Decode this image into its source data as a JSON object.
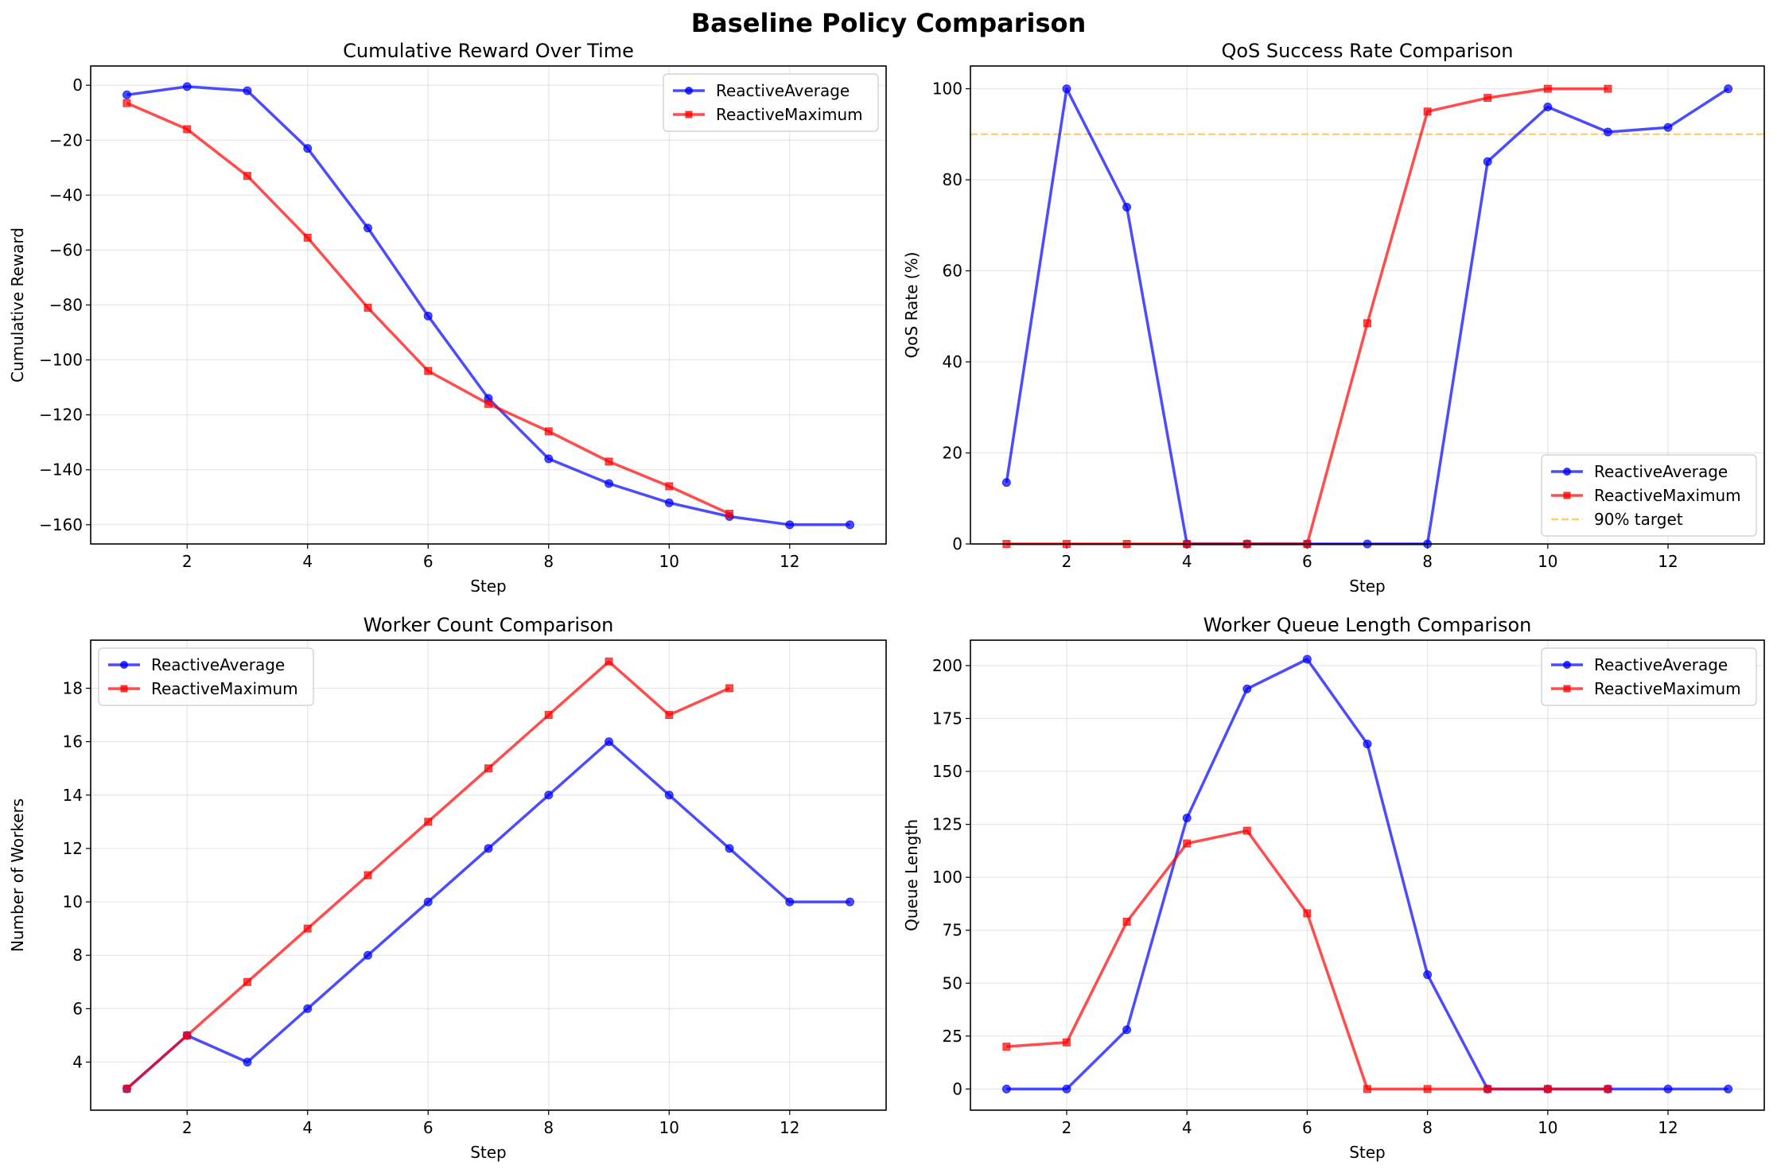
{
  "figure_title": "Baseline Policy Comparison",
  "colors": {
    "average": "#0000ff",
    "maximum": "#ff0000",
    "target": "#ffa500"
  },
  "chart_data": [
    {
      "type": "line",
      "title": "Cumulative Reward Over Time",
      "xlabel": "Step",
      "ylabel": "Cumulative Reward",
      "xlim": [
        0.4,
        13.6
      ],
      "ylim": [
        -167,
        7
      ],
      "xticks": [
        2,
        4,
        6,
        8,
        10,
        12
      ],
      "yticks": [
        0,
        -20,
        -40,
        -60,
        -80,
        -100,
        -120,
        -140,
        -160
      ],
      "grid": true,
      "legend": "upper right",
      "series": [
        {
          "name": "ReactiveAverage",
          "marker": "circle",
          "x": [
            1,
            2,
            3,
            4,
            5,
            6,
            7,
            8,
            9,
            10,
            11,
            12,
            13
          ],
          "y": [
            -3.5,
            -0.5,
            -2,
            -23,
            -52,
            -84,
            -114,
            -136,
            -145,
            -152,
            -157,
            -160,
            -160
          ]
        },
        {
          "name": "ReactiveMaximum",
          "marker": "square",
          "x": [
            1,
            2,
            3,
            4,
            5,
            6,
            7,
            8,
            9,
            10,
            11
          ],
          "y": [
            -6.5,
            -16,
            -33,
            -55.5,
            -81,
            -104,
            -116,
            -126,
            -137,
            -146,
            -156
          ]
        }
      ]
    },
    {
      "type": "line",
      "title": "QoS Success Rate Comparison",
      "xlabel": "Step",
      "ylabel": "QoS Rate (%)",
      "xlim": [
        0.4,
        13.6
      ],
      "ylim": [
        0,
        105
      ],
      "xticks": [
        2,
        4,
        6,
        8,
        10,
        12
      ],
      "yticks": [
        0,
        20,
        40,
        60,
        80,
        100
      ],
      "grid": true,
      "legend": "lower right",
      "hline": {
        "y": 90,
        "label": "90% target",
        "style": "dashed"
      },
      "series": [
        {
          "name": "ReactiveAverage",
          "marker": "circle",
          "x": [
            1,
            2,
            3,
            4,
            5,
            6,
            7,
            8,
            9,
            10,
            11,
            12,
            13
          ],
          "y": [
            13.5,
            100,
            74,
            0,
            0,
            0,
            0,
            0,
            84,
            96,
            90.5,
            91.5,
            100
          ]
        },
        {
          "name": "ReactiveMaximum",
          "marker": "square",
          "x": [
            1,
            2,
            3,
            4,
            5,
            6,
            7,
            8,
            9,
            10,
            11
          ],
          "y": [
            0,
            0,
            0,
            0,
            0,
            0,
            48.5,
            95,
            98,
            100,
            100
          ]
        }
      ]
    },
    {
      "type": "line",
      "title": "Worker Count Comparison",
      "xlabel": "Step",
      "ylabel": "Number of Workers",
      "xlim": [
        0.4,
        13.6
      ],
      "ylim": [
        2.2,
        19.8
      ],
      "xticks": [
        2,
        4,
        6,
        8,
        10,
        12
      ],
      "yticks": [
        4,
        6,
        8,
        10,
        12,
        14,
        16,
        18
      ],
      "grid": true,
      "legend": "upper left",
      "series": [
        {
          "name": "ReactiveAverage",
          "marker": "circle",
          "x": [
            1,
            2,
            3,
            4,
            5,
            6,
            7,
            8,
            9,
            10,
            11,
            12,
            13
          ],
          "y": [
            3,
            5,
            4,
            6,
            8,
            10,
            12,
            14,
            16,
            14,
            12,
            10,
            10
          ]
        },
        {
          "name": "ReactiveMaximum",
          "marker": "square",
          "x": [
            1,
            2,
            3,
            4,
            5,
            6,
            7,
            8,
            9,
            10,
            11
          ],
          "y": [
            3,
            5,
            7,
            9,
            11,
            13,
            15,
            17,
            19,
            17,
            18
          ]
        }
      ]
    },
    {
      "type": "line",
      "title": "Worker Queue Length Comparison",
      "xlabel": "Step",
      "ylabel": "Queue Length",
      "xlim": [
        0.4,
        13.6
      ],
      "ylim": [
        -10,
        212
      ],
      "xticks": [
        2,
        4,
        6,
        8,
        10,
        12
      ],
      "yticks": [
        0,
        25,
        50,
        75,
        100,
        125,
        150,
        175,
        200
      ],
      "grid": true,
      "legend": "upper right",
      "series": [
        {
          "name": "ReactiveAverage",
          "marker": "circle",
          "x": [
            1,
            2,
            3,
            4,
            5,
            6,
            7,
            8,
            9,
            10,
            11,
            12,
            13
          ],
          "y": [
            0,
            0,
            28,
            128,
            189,
            203,
            163,
            54,
            0,
            0,
            0,
            0,
            0
          ]
        },
        {
          "name": "ReactiveMaximum",
          "marker": "square",
          "x": [
            1,
            2,
            3,
            4,
            5,
            6,
            7,
            8,
            9,
            10,
            11
          ],
          "y": [
            20,
            22,
            79,
            116,
            122,
            83,
            0,
            0,
            0,
            0,
            0
          ]
        }
      ]
    }
  ]
}
